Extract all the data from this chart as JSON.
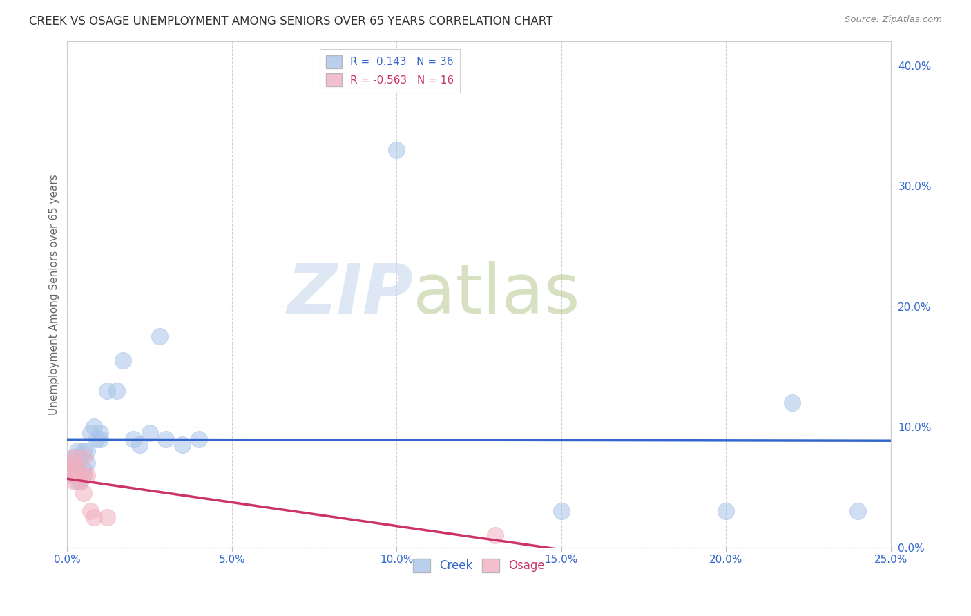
{
  "title": "CREEK VS OSAGE UNEMPLOYMENT AMONG SENIORS OVER 65 YEARS CORRELATION CHART",
  "source": "Source: ZipAtlas.com",
  "ylabel": "Unemployment Among Seniors over 65 years",
  "xlim": [
    0.0,
    0.25
  ],
  "ylim": [
    0.0,
    0.42
  ],
  "xticks": [
    0.0,
    0.05,
    0.1,
    0.15,
    0.2,
    0.25
  ],
  "yticks": [
    0.0,
    0.1,
    0.2,
    0.3,
    0.4
  ],
  "creek_R": 0.143,
  "creek_N": 36,
  "osage_R": -0.563,
  "osage_N": 16,
  "creek_color": "#a8c4e8",
  "osage_color": "#f2b0c0",
  "creek_line_color": "#3366cc",
  "osage_line_color": "#cc3366",
  "creek_x": [
    0.0,
    0.001,
    0.001,
    0.002,
    0.002,
    0.002,
    0.003,
    0.003,
    0.003,
    0.004,
    0.004,
    0.005,
    0.005,
    0.005,
    0.006,
    0.006,
    0.007,
    0.008,
    0.009,
    0.01,
    0.01,
    0.012,
    0.015,
    0.017,
    0.02,
    0.022,
    0.025,
    0.028,
    0.03,
    0.035,
    0.04,
    0.1,
    0.15,
    0.2,
    0.22,
    0.24
  ],
  "creek_y": [
    0.067,
    0.063,
    0.07,
    0.06,
    0.065,
    0.075,
    0.055,
    0.065,
    0.08,
    0.055,
    0.075,
    0.06,
    0.065,
    0.08,
    0.07,
    0.08,
    0.095,
    0.1,
    0.09,
    0.09,
    0.095,
    0.13,
    0.13,
    0.155,
    0.09,
    0.085,
    0.095,
    0.175,
    0.09,
    0.085,
    0.09,
    0.33,
    0.03,
    0.03,
    0.12,
    0.03
  ],
  "osage_x": [
    0.0,
    0.001,
    0.001,
    0.002,
    0.002,
    0.003,
    0.003,
    0.004,
    0.005,
    0.005,
    0.005,
    0.006,
    0.007,
    0.008,
    0.012,
    0.13
  ],
  "osage_y": [
    0.06,
    0.065,
    0.07,
    0.055,
    0.075,
    0.06,
    0.065,
    0.055,
    0.06,
    0.075,
    0.045,
    0.06,
    0.03,
    0.025,
    0.025,
    0.01
  ]
}
